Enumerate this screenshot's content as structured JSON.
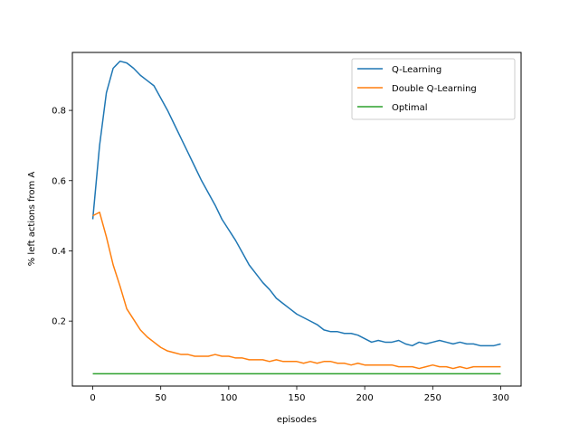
{
  "chart_data": {
    "type": "line",
    "xlabel": "episodes",
    "ylabel": "% left actions from A",
    "xlim": [
      -15,
      315
    ],
    "ylim": [
      0.015,
      0.965
    ],
    "xticks": [
      0,
      50,
      100,
      150,
      200,
      250,
      300
    ],
    "yticks": [
      0.2,
      0.4,
      0.6,
      0.8
    ],
    "ytick_labels": [
      "0.2",
      "0.4",
      "0.6",
      "0.8"
    ],
    "grid": false,
    "legend_position": "top-right",
    "x": [
      0,
      5,
      10,
      15,
      20,
      25,
      30,
      35,
      40,
      45,
      50,
      55,
      60,
      65,
      70,
      75,
      80,
      85,
      90,
      95,
      100,
      105,
      110,
      115,
      120,
      125,
      130,
      135,
      140,
      145,
      150,
      155,
      160,
      165,
      170,
      175,
      180,
      185,
      190,
      195,
      200,
      205,
      210,
      215,
      220,
      225,
      230,
      235,
      240,
      245,
      250,
      255,
      260,
      265,
      270,
      275,
      280,
      285,
      290,
      295,
      300
    ],
    "series": [
      {
        "name": "Q-Learning",
        "color": "#1f77b4",
        "values": [
          0.49,
          0.7,
          0.85,
          0.92,
          0.94,
          0.935,
          0.92,
          0.9,
          0.885,
          0.87,
          0.835,
          0.8,
          0.76,
          0.72,
          0.68,
          0.64,
          0.6,
          0.565,
          0.53,
          0.49,
          0.46,
          0.43,
          0.395,
          0.36,
          0.335,
          0.31,
          0.29,
          0.265,
          0.25,
          0.235,
          0.22,
          0.21,
          0.2,
          0.19,
          0.175,
          0.17,
          0.17,
          0.165,
          0.165,
          0.16,
          0.15,
          0.14,
          0.145,
          0.14,
          0.14,
          0.145,
          0.135,
          0.13,
          0.14,
          0.135,
          0.14,
          0.145,
          0.14,
          0.135,
          0.14,
          0.135,
          0.135,
          0.13,
          0.13,
          0.13,
          0.135
        ]
      },
      {
        "name": "Double Q-Learning",
        "color": "#ff7f0e",
        "values": [
          0.5,
          0.51,
          0.44,
          0.36,
          0.3,
          0.235,
          0.205,
          0.175,
          0.155,
          0.14,
          0.125,
          0.115,
          0.11,
          0.105,
          0.105,
          0.1,
          0.1,
          0.1,
          0.105,
          0.1,
          0.1,
          0.095,
          0.095,
          0.09,
          0.09,
          0.09,
          0.085,
          0.09,
          0.085,
          0.085,
          0.085,
          0.08,
          0.085,
          0.08,
          0.085,
          0.085,
          0.08,
          0.08,
          0.075,
          0.08,
          0.075,
          0.075,
          0.075,
          0.075,
          0.075,
          0.07,
          0.07,
          0.07,
          0.065,
          0.07,
          0.075,
          0.07,
          0.07,
          0.065,
          0.07,
          0.065,
          0.07,
          0.07,
          0.07,
          0.07,
          0.07
        ]
      },
      {
        "name": "Optimal",
        "color": "#2ca02c",
        "values": [
          0.05,
          0.05,
          0.05,
          0.05,
          0.05,
          0.05,
          0.05,
          0.05,
          0.05,
          0.05,
          0.05,
          0.05,
          0.05,
          0.05,
          0.05,
          0.05,
          0.05,
          0.05,
          0.05,
          0.05,
          0.05,
          0.05,
          0.05,
          0.05,
          0.05,
          0.05,
          0.05,
          0.05,
          0.05,
          0.05,
          0.05,
          0.05,
          0.05,
          0.05,
          0.05,
          0.05,
          0.05,
          0.05,
          0.05,
          0.05,
          0.05,
          0.05,
          0.05,
          0.05,
          0.05,
          0.05,
          0.05,
          0.05,
          0.05,
          0.05,
          0.05,
          0.05,
          0.05,
          0.05,
          0.05,
          0.05,
          0.05,
          0.05,
          0.05,
          0.05,
          0.05
        ]
      }
    ]
  }
}
